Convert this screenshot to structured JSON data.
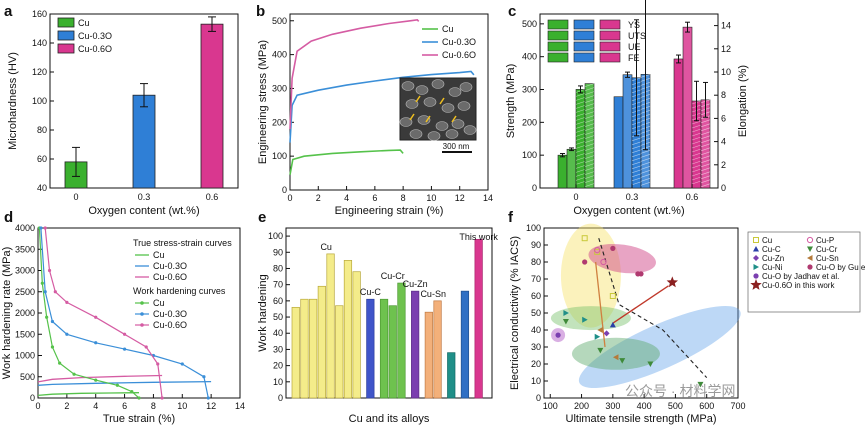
{
  "panels": {
    "a": {
      "letter": "a",
      "chart_data": {
        "type": "bar",
        "categories": [
          "0",
          "0.3",
          "0.6"
        ],
        "series": [
          {
            "name": "Cu",
            "value": 58,
            "err": 10,
            "color": "#3ab02e"
          },
          {
            "name": "Cu-0.3O",
            "value": 104,
            "err": 8,
            "color": "#2f7fd6"
          },
          {
            "name": "Cu-0.6O",
            "value": 153,
            "err": 5,
            "color": "#d9378f"
          }
        ],
        "xlabel": "Oxygen content (wt.%)",
        "ylabel": "Microhardness (HV)",
        "ylim": [
          40,
          160
        ],
        "yticks": [
          "40",
          "60",
          "80",
          "100",
          "120",
          "140",
          "160"
        ],
        "legend": "top-left"
      }
    },
    "b": {
      "letter": "b",
      "chart_data": {
        "type": "line",
        "series": [
          {
            "name": "Cu",
            "color": "#55c24a",
            "points": [
              [
                0,
                45
              ],
              [
                0.2,
                90
              ],
              [
                1,
                100
              ],
              [
                3,
                108
              ],
              [
                5,
                113
              ],
              [
                7,
                117
              ],
              [
                7.8,
                118
              ],
              [
                8,
                108
              ]
            ]
          },
          {
            "name": "Cu-0.3O",
            "color": "#3b8fd8",
            "points": [
              [
                0,
                140
              ],
              [
                0.15,
                250
              ],
              [
                0.5,
                280
              ],
              [
                2,
                295
              ],
              [
                4,
                310
              ],
              [
                6,
                322
              ],
              [
                8,
                333
              ],
              [
                10,
                341
              ],
              [
                12,
                347
              ],
              [
                12.8,
                350
              ],
              [
                13,
                340
              ]
            ]
          },
          {
            "name": "Cu-0.6O",
            "color": "#d55ca3",
            "points": [
              [
                0,
                180
              ],
              [
                0.15,
                330
              ],
              [
                0.5,
                410
              ],
              [
                1.5,
                440
              ],
              [
                3,
                460
              ],
              [
                5,
                478
              ],
              [
                7,
                492
              ],
              [
                8.5,
                500
              ],
              [
                9,
                503
              ],
              [
                9.1,
                498
              ]
            ]
          }
        ],
        "xlabel": "Engineering strain (%)",
        "ylabel": "Engineering stress (MPa)",
        "xlim": [
          0,
          14
        ],
        "ylim": [
          0,
          500
        ],
        "xticks": [
          "0",
          "2",
          "4",
          "6",
          "8",
          "10",
          "12",
          "14"
        ],
        "yticks": [
          "0",
          "100",
          "200",
          "300",
          "400",
          "500"
        ],
        "legend": "top-right",
        "inset_scale": "300 nm"
      }
    },
    "c": {
      "letter": "c",
      "chart_data": {
        "type": "bar",
        "categories": [
          "0",
          "0.3",
          "0.6"
        ],
        "metrics": [
          "YS",
          "UTS",
          "UE",
          "FE"
        ],
        "strength": {
          "ys": [
            100,
            278,
            393
          ],
          "uts": [
            118,
            345,
            490
          ]
        },
        "elongation": {
          "ue": [
            8.5,
            9.5,
            7.5
          ],
          "fe": [
            9.0,
            9.8,
            7.6
          ]
        },
        "strength_err": {
          "ys": [
            5,
            0,
            12
          ],
          "uts": [
            4,
            8,
            15
          ]
        },
        "elongation_err": {
          "ue": [
            0.3,
            5.0,
            1.7
          ],
          "fe": [
            0,
            6.5,
            1.5
          ]
        },
        "colors": {
          "0": "#3ab02e",
          "0.3": "#2f7fd6",
          "0.6": "#d9378f"
        },
        "xlabel": "Oxygen content (wt.%)",
        "ylabel": "Strength (MPa)",
        "ylabel2": "Elongation (%)",
        "ylim": [
          0,
          500
        ],
        "ylim2": [
          0,
          15
        ],
        "yticks": [
          "0",
          "100",
          "200",
          "300",
          "400",
          "500"
        ],
        "yticks2": [
          "0",
          "2",
          "4",
          "6",
          "8",
          "10",
          "12",
          "14"
        ],
        "legend": "top-left"
      }
    },
    "d": {
      "letter": "d",
      "chart_data": {
        "type": "line",
        "legend_title1": "True stress-strain curves",
        "legend_title2": "Work hardening curves",
        "stress_strain": [
          {
            "name": "Cu",
            "color": "#55c24a",
            "points": [
              [
                0,
                60
              ],
              [
                1,
                90
              ],
              [
                3,
                110
              ],
              [
                5,
                118
              ],
              [
                7,
                125
              ]
            ]
          },
          {
            "name": "Cu-0.3O",
            "color": "#3b8fd8",
            "points": [
              [
                0,
                300
              ],
              [
                1,
                320
              ],
              [
                4,
                345
              ],
              [
                8,
                370
              ],
              [
                12,
                385
              ]
            ]
          },
          {
            "name": "Cu-0.6O",
            "color": "#d55ca3",
            "points": [
              [
                0,
                380
              ],
              [
                1,
                440
              ],
              [
                3,
                480
              ],
              [
                6,
                510
              ],
              [
                8.6,
                530
              ]
            ]
          }
        ],
        "work_hardening": [
          {
            "name": "Cu",
            "color": "#55c24a",
            "points": [
              [
                0.1,
                4000
              ],
              [
                0.3,
                2700
              ],
              [
                0.6,
                1900
              ],
              [
                1,
                1200
              ],
              [
                1.5,
                820
              ],
              [
                2.5,
                560
              ],
              [
                4,
                420
              ],
              [
                5.5,
                300
              ],
              [
                6.5,
                150
              ],
              [
                7,
                0
              ]
            ]
          },
          {
            "name": "Cu-0.3O",
            "color": "#3b8fd8",
            "points": [
              [
                0.2,
                4000
              ],
              [
                0.5,
                2500
              ],
              [
                1,
                1800
              ],
              [
                2,
                1500
              ],
              [
                4,
                1300
              ],
              [
                6,
                1150
              ],
              [
                8,
                1000
              ],
              [
                10,
                800
              ],
              [
                11.5,
                500
              ],
              [
                11.8,
                0
              ]
            ]
          },
          {
            "name": "Cu-0.6O",
            "color": "#d55ca3",
            "points": [
              [
                0.5,
                4000
              ],
              [
                0.8,
                3000
              ],
              [
                1.2,
                2500
              ],
              [
                2,
                2250
              ],
              [
                4,
                1900
              ],
              [
                6,
                1500
              ],
              [
                7.5,
                1200
              ],
              [
                8.3,
                800
              ],
              [
                8.6,
                0
              ]
            ]
          }
        ],
        "xlabel": "True strain (%)",
        "ylabel": "Work hardening rate (MPa)",
        "xlim": [
          0,
          14
        ],
        "ylim": [
          0,
          4000
        ],
        "xticks": [
          "0",
          "2",
          "4",
          "6",
          "8",
          "10",
          "12",
          "14"
        ],
        "yticks": [
          "0",
          "500",
          "1000",
          "1500",
          "2000",
          "2500",
          "3000",
          "3500",
          "4000"
        ],
        "legend": "top-right"
      }
    },
    "e": {
      "letter": "e",
      "chart_data": {
        "type": "bar",
        "groups": [
          {
            "label": "Cu",
            "color": "#f4ec8a",
            "stroke": "#b8a83a",
            "values": [
              56,
              61,
              61,
              69,
              89,
              57,
              85,
              78
            ]
          },
          {
            "label": "Cu-C",
            "color": "#3f55c9",
            "stroke": "#2c3f9e",
            "values": [
              61
            ]
          },
          {
            "label": "Cu-Cr",
            "color": "#6ec24e",
            "stroke": "#4e9a34",
            "values": [
              61,
              57,
              71
            ]
          },
          {
            "label": "Cu-Zn",
            "color": "#7b3fb0",
            "stroke": "#5c2d86",
            "values": [
              66
            ]
          },
          {
            "label": "Cu-Sn",
            "color": "#f3b07a",
            "stroke": "#c07a44",
            "values": [
              53,
              60
            ]
          },
          {
            "label": "",
            "color": "#1f8f88",
            "stroke": "#156a65",
            "values": [
              28
            ]
          },
          {
            "label": "",
            "color": "#2f6fc4",
            "stroke": "#214f8f",
            "values": [
              66
            ]
          },
          {
            "label": "This work",
            "color": "#d9378f",
            "stroke": "#a8256c",
            "values": [
              98
            ]
          }
        ],
        "xlabel": "Cu and its alloys",
        "ylabel": "Work hardening",
        "ylim": [
          0,
          100
        ],
        "yticks": [
          "0",
          "10",
          "20",
          "30",
          "40",
          "50",
          "60",
          "70",
          "80",
          "90",
          "100"
        ]
      }
    },
    "f": {
      "letter": "f",
      "chart_data": {
        "type": "scatter",
        "xlabel": "Ultimate tensile strength (MPa)",
        "ylabel": "Electrical conductivity (% IACS)",
        "xlim": [
          80,
          700
        ],
        "ylim": [
          0,
          100
        ],
        "xticks": [
          "100",
          "200",
          "300",
          "400",
          "500",
          "600",
          "700"
        ],
        "yticks": [
          "0",
          "10",
          "20",
          "30",
          "40",
          "50",
          "60",
          "70",
          "80",
          "90",
          "100"
        ],
        "legend": [
          {
            "name": "Cu",
            "marker": "square",
            "color": "#c9c93a"
          },
          {
            "name": "Cu-P",
            "marker": "circle-open",
            "color": "#d55ca3"
          },
          {
            "name": "Cu-C",
            "marker": "triangle-up",
            "color": "#2a3fa8"
          },
          {
            "name": "Cu-Cr",
            "marker": "triangle-down",
            "color": "#3f8a3a"
          },
          {
            "name": "Cu-Zn",
            "marker": "diamond",
            "color": "#7b3fb0"
          },
          {
            "name": "Cu-Sn",
            "marker": "triangle-left",
            "color": "#b57a3a"
          },
          {
            "name": "Cu-Ni",
            "marker": "triangle-right",
            "color": "#1f8f88"
          },
          {
            "name": "Cu-O by Gu et al.",
            "marker": "circle",
            "color": "#b03a70"
          },
          {
            "name": "Cu-O by Jadhav et al.",
            "marker": "circle",
            "color": "#7b3fb0"
          },
          {
            "name": "Cu-0.6O in this work",
            "marker": "star",
            "color": "#8b2020"
          }
        ],
        "points": [
          {
            "s": "Cu",
            "x": 210,
            "y": 94
          },
          {
            "s": "Cu",
            "x": 250,
            "y": 86
          },
          {
            "s": "Cu",
            "x": 300,
            "y": 60
          },
          {
            "s": "Cu-P",
            "x": 250,
            "y": 87
          },
          {
            "s": "Cu-P",
            "x": 270,
            "y": 80
          },
          {
            "s": "Cu-C",
            "x": 300,
            "y": 43
          },
          {
            "s": "Cu-Cr",
            "x": 150,
            "y": 45
          },
          {
            "s": "Cu-Cr",
            "x": 260,
            "y": 28
          },
          {
            "s": "Cu-Cr",
            "x": 330,
            "y": 22
          },
          {
            "s": "Cu-Cr",
            "x": 420,
            "y": 20
          },
          {
            "s": "Cu-Cr",
            "x": 580,
            "y": 8
          },
          {
            "s": "Cu-Zn",
            "x": 280,
            "y": 38
          },
          {
            "s": "Cu-Sn",
            "x": 260,
            "y": 40
          },
          {
            "s": "Cu-Sn",
            "x": 310,
            "y": 24
          },
          {
            "s": "Cu-Ni",
            "x": 150,
            "y": 50
          },
          {
            "s": "Cu-Ni",
            "x": 210,
            "y": 46
          },
          {
            "s": "Cu-Ni",
            "x": 250,
            "y": 36
          },
          {
            "s": "Cu-O by Gu et al.",
            "x": 210,
            "y": 80
          },
          {
            "s": "Cu-O by Gu et al.",
            "x": 300,
            "y": 88
          },
          {
            "s": "Cu-O by Gu et al.",
            "x": 380,
            "y": 73
          },
          {
            "s": "Cu-O by Gu et al.",
            "x": 390,
            "y": 73
          },
          {
            "s": "Cu-O by Jadhav et al.",
            "x": 125,
            "y": 37
          },
          {
            "s": "Cu-0.6O in this work",
            "x": 490,
            "y": 68
          }
        ]
      }
    }
  },
  "watermark": "公众号 · 材料学网"
}
